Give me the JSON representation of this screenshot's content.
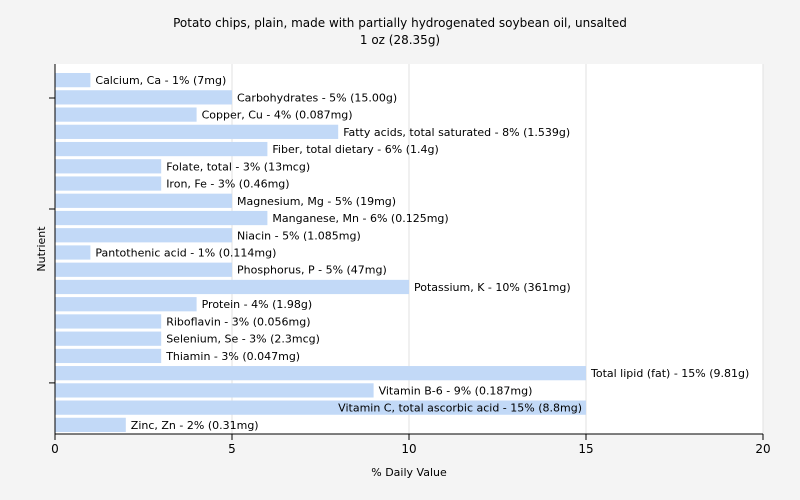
{
  "chart_data": {
    "type": "bar",
    "orientation": "horizontal",
    "title": "Potato chips, plain, made with partially hydrogenated soybean oil, unsalted",
    "subtitle": "1 oz (28.35g)",
    "xlabel": "% Daily Value",
    "ylabel": "Nutrient",
    "xlim": [
      0,
      20
    ],
    "xticks": [
      0,
      5,
      10,
      15,
      20
    ],
    "grid": true,
    "bar_color": "#c2d9f7",
    "categories": [
      "Calcium, Ca",
      "Carbohydrates",
      "Copper, Cu",
      "Fatty acids, total saturated",
      "Fiber, total dietary",
      "Folate, total",
      "Iron, Fe",
      "Magnesium, Mg",
      "Manganese, Mn",
      "Niacin",
      "Pantothenic acid",
      "Phosphorus, P",
      "Potassium, K",
      "Protein",
      "Riboflavin",
      "Selenium, Se",
      "Thiamin",
      "Total lipid (fat)",
      "Vitamin B-6",
      "Vitamin C, total ascorbic acid",
      "Zinc, Zn"
    ],
    "values": [
      1,
      5,
      4,
      8,
      6,
      3,
      3,
      5,
      6,
      5,
      1,
      5,
      10,
      4,
      3,
      3,
      3,
      15,
      9,
      15,
      2
    ],
    "labels": [
      "Calcium, Ca - 1% (7mg)",
      "Carbohydrates - 5% (15.00g)",
      "Copper, Cu - 4% (0.087mg)",
      "Fatty acids, total saturated - 8% (1.539g)",
      "Fiber, total dietary - 6% (1.4g)",
      "Folate, total - 3% (13mcg)",
      "Iron, Fe - 3% (0.46mg)",
      "Magnesium, Mg - 5% (19mg)",
      "Manganese, Mn - 6% (0.125mg)",
      "Niacin - 5% (1.085mg)",
      "Pantothenic acid - 1% (0.114mg)",
      "Phosphorus, P - 5% (47mg)",
      "Potassium, K - 10% (361mg)",
      "Protein - 4% (1.98g)",
      "Riboflavin - 3% (0.056mg)",
      "Selenium, Se - 3% (2.3mcg)",
      "Thiamin - 3% (0.047mg)",
      "Total lipid (fat) - 15% (9.81g)",
      "Vitamin B-6 - 9% (0.187mg)",
      "Vitamin C, total ascorbic acid - 15% (8.8mg)",
      "Zinc, Zn - 2% (0.31mg)"
    ],
    "label_inside_bar": [
      false,
      false,
      false,
      false,
      false,
      false,
      false,
      false,
      false,
      false,
      false,
      false,
      false,
      false,
      false,
      false,
      false,
      false,
      false,
      true,
      false
    ]
  }
}
